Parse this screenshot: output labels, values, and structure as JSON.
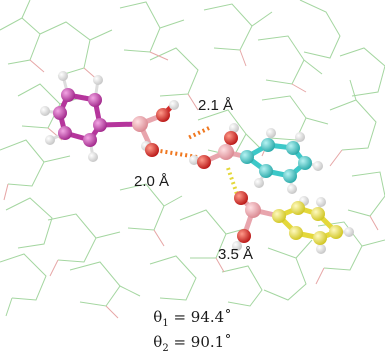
{
  "figure": {
    "distance_labels": [
      "2.1 Å",
      "2.0 Å",
      "3.5 Å"
    ],
    "angles": [
      {
        "symbol": "θ",
        "subscript": "1",
        "value": "= 94.4˚"
      },
      {
        "symbol": "θ",
        "subscript": "2",
        "value": "= 90.1˚"
      }
    ],
    "colors": {
      "background_mesh": "#9fd39a",
      "oxygen_mesh": "#e8a0a0",
      "carbon_magenta": "#b5359c",
      "carbon_cyan": "#3cc8c8",
      "sulfur_yellow": "#e8e43a",
      "boron_pink": "#e8a5ad",
      "oxygen_red": "#d42a2a",
      "hydrogen": "#f2f2f2",
      "hbond_orange": "#f07820",
      "contact_yellow": "#e4d83a"
    }
  }
}
